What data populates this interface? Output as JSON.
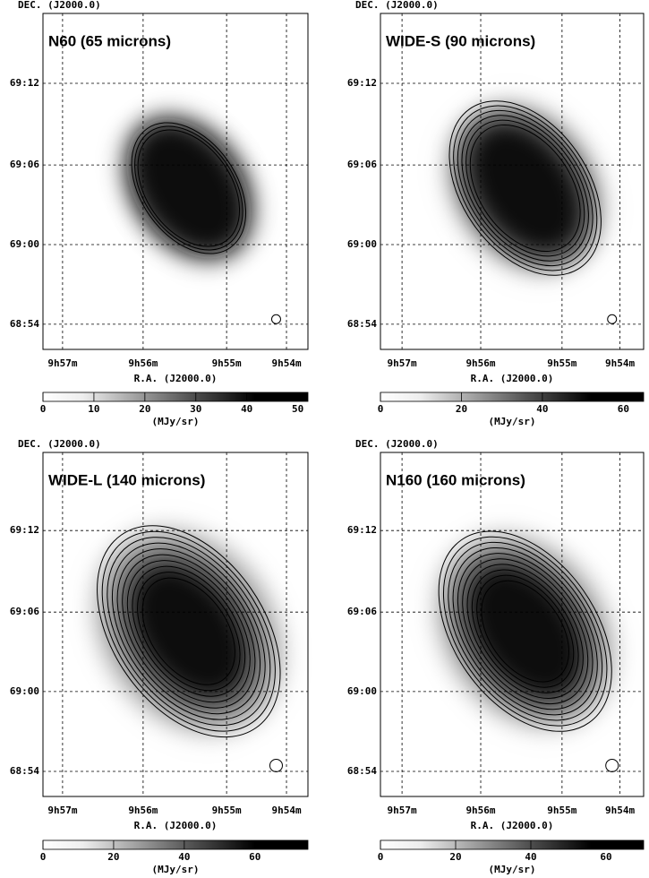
{
  "panels": [
    {
      "title": "N60 (65 microns)",
      "dec_label": "DEC. (J2000.0)",
      "ra_label": "R.A. (J2000.0)",
      "yticks": [
        "69:12",
        "69:06",
        "69:00",
        "68:54"
      ],
      "xticks": [
        "9h57m",
        "9h56m",
        "9h55m",
        "9h54m"
      ],
      "colorbar": {
        "range": [
          0,
          52
        ],
        "ticks": [
          0,
          10,
          20,
          30,
          40,
          50
        ],
        "label": "(MJy/sr)"
      }
    },
    {
      "title": "WIDE-S (90 microns)",
      "dec_label": "DEC. (J2000.0)",
      "ra_label": "R.A. (J2000.0)",
      "yticks": [
        "69:12",
        "69:06",
        "69:00",
        "68:54"
      ],
      "xticks": [
        "9h57m",
        "9h56m",
        "9h55m",
        "9h54m"
      ],
      "colorbar": {
        "range": [
          0,
          65
        ],
        "ticks": [
          0,
          20,
          40,
          60
        ],
        "label": "(MJy/sr)"
      }
    },
    {
      "title": "WIDE-L (140 microns)",
      "dec_label": "DEC. (J2000.0)",
      "ra_label": "R.A. (J2000.0)",
      "yticks": [
        "69:12",
        "69:06",
        "69:00",
        "68:54"
      ],
      "xticks": [
        "9h57m",
        "9h56m",
        "9h55m",
        "9h54m"
      ],
      "colorbar": {
        "range": [
          0,
          75
        ],
        "ticks": [
          0,
          20,
          40,
          60
        ],
        "label": "(MJy/sr)"
      }
    },
    {
      "title": "N160 (160 microns)",
      "dec_label": "DEC. (J2000.0)",
      "ra_label": "R.A. (J2000.0)",
      "yticks": [
        "69:12",
        "69:06",
        "69:00",
        "68:54"
      ],
      "xticks": [
        "9h57m",
        "9h56m",
        "9h55m",
        "9h54m"
      ],
      "colorbar": {
        "range": [
          0,
          70
        ],
        "ticks": [
          0,
          20,
          40,
          60
        ],
        "label": "(MJy/sr)"
      }
    }
  ]
}
